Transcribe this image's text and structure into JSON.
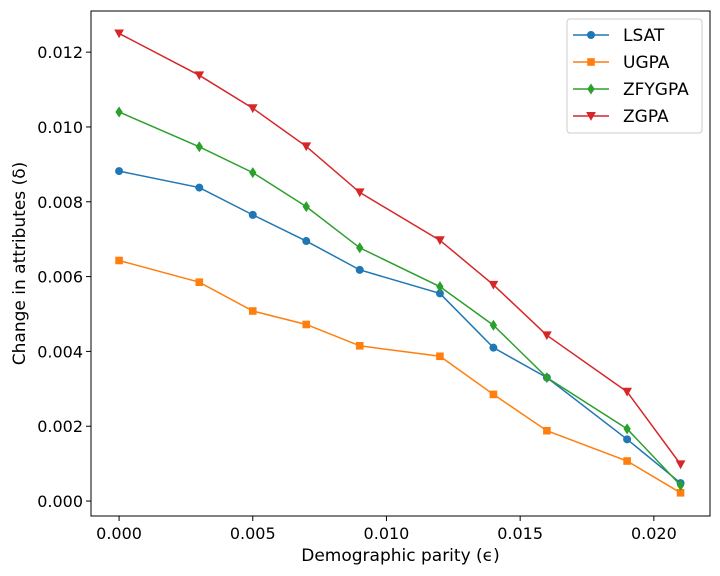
{
  "chart_data": {
    "type": "line",
    "title": "",
    "xlabel": "Demographic parity (ϵ)",
    "ylabel": "Change in attributes (δ)",
    "xlim": [
      -0.00105,
      0.0221
    ],
    "ylim": [
      -0.0004,
      0.0131
    ],
    "xticks": [
      0.0,
      0.005,
      0.01,
      0.015,
      0.02
    ],
    "xtick_labels": [
      "0.000",
      "0.005",
      "0.010",
      "0.015",
      "0.020"
    ],
    "yticks": [
      0.0,
      0.002,
      0.004,
      0.006,
      0.008,
      0.01,
      0.012
    ],
    "ytick_labels": [
      "0.000",
      "0.002",
      "0.004",
      "0.006",
      "0.008",
      "0.010",
      "0.012"
    ],
    "grid": false,
    "legend_position": "top-right",
    "x": [
      0.0,
      0.003,
      0.005,
      0.007,
      0.009,
      0.012,
      0.014,
      0.016,
      0.019,
      0.021
    ],
    "series": [
      {
        "name": "LSAT",
        "color": "#1f77b4",
        "marker": "circle",
        "values": [
          0.00882,
          0.00838,
          0.00765,
          0.00695,
          0.00618,
          0.00555,
          0.0041,
          0.0033,
          0.00165,
          0.00048
        ]
      },
      {
        "name": "UGPA",
        "color": "#ff7f0e",
        "marker": "square",
        "values": [
          0.00643,
          0.00585,
          0.00508,
          0.00472,
          0.00415,
          0.00387,
          0.00285,
          0.00188,
          0.00107,
          0.00022
        ]
      },
      {
        "name": "ZFYGPA",
        "color": "#2ca02c",
        "marker": "diamond",
        "values": [
          0.0104,
          0.00947,
          0.00878,
          0.00787,
          0.00677,
          0.00573,
          0.0047,
          0.0033,
          0.00193,
          0.00042
        ]
      },
      {
        "name": "ZGPA",
        "color": "#d62728",
        "marker": "triangle-down",
        "values": [
          0.0125,
          0.01138,
          0.0105,
          0.00948,
          0.00825,
          0.00697,
          0.00578,
          0.00443,
          0.00292,
          0.00098
        ]
      }
    ]
  }
}
